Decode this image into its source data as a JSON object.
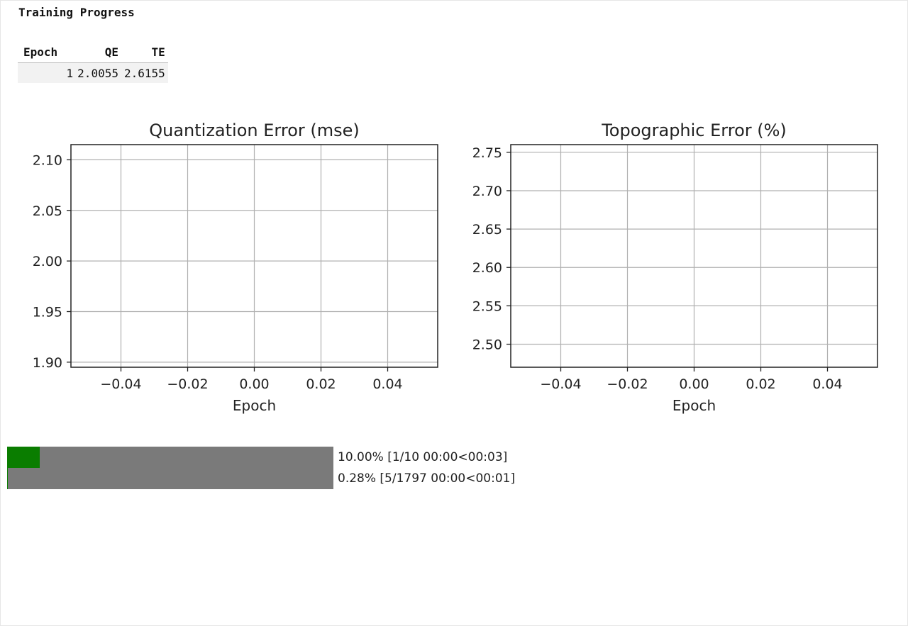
{
  "header": {
    "title": "Training Progress"
  },
  "table": {
    "columns": [
      "Epoch",
      "QE",
      "TE"
    ],
    "rows": [
      [
        "1",
        "2.0055",
        "2.6155"
      ]
    ]
  },
  "chart_data": [
    {
      "type": "line",
      "title": "Quantization Error (mse)",
      "xlabel": "Epoch",
      "ylabel": "",
      "x": [],
      "series": [],
      "xlim": [
        -0.055,
        0.055
      ],
      "ylim": [
        1.895,
        2.115
      ],
      "xticks": [
        -0.04,
        -0.02,
        0.0,
        0.02,
        0.04
      ],
      "xtick_labels": [
        "−0.04",
        "−0.02",
        "0.00",
        "0.02",
        "0.04"
      ],
      "yticks": [
        1.9,
        1.95,
        2.0,
        2.05,
        2.1
      ],
      "ytick_labels": [
        "1.90",
        "1.95",
        "2.00",
        "2.05",
        "2.10"
      ],
      "grid": true
    },
    {
      "type": "line",
      "title": "Topographic Error (%)",
      "xlabel": "Epoch",
      "ylabel": "",
      "x": [],
      "series": [],
      "xlim": [
        -0.055,
        0.055
      ],
      "ylim": [
        2.47,
        2.76
      ],
      "xticks": [
        -0.04,
        -0.02,
        0.0,
        0.02,
        0.04
      ],
      "xtick_labels": [
        "−0.04",
        "−0.02",
        "0.00",
        "0.02",
        "0.04"
      ],
      "yticks": [
        2.5,
        2.55,
        2.6,
        2.65,
        2.7,
        2.75
      ],
      "ytick_labels": [
        "2.50",
        "2.55",
        "2.60",
        "2.65",
        "2.70",
        "2.75"
      ],
      "grid": true
    }
  ],
  "progress": {
    "epochs": {
      "fraction": 0.1,
      "text": "10.00% [1/10 00:00<00:03]",
      "fill_color": "#0a7d00"
    },
    "batches": {
      "fraction": 0.0028,
      "text": "0.28% [5/1797 00:00<00:01]",
      "fill_color": "#0a7d00"
    }
  }
}
